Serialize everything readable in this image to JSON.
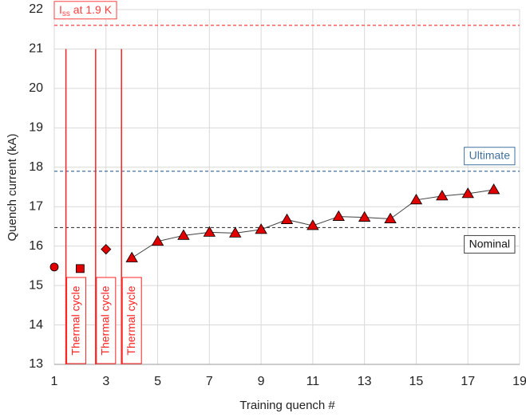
{
  "chart_data": {
    "type": "line",
    "xlabel": "Training quench #",
    "ylabel": "Quench current (kA)",
    "xlim": [
      1,
      19
    ],
    "xticks": [
      1,
      3,
      5,
      7,
      9,
      11,
      13,
      15,
      17,
      19
    ],
    "ylim": [
      13,
      22
    ],
    "yticks": [
      13,
      14,
      15,
      16,
      17,
      18,
      19,
      20,
      21,
      22
    ],
    "grid": true,
    "series": [
      {
        "marker": "circle",
        "color": "#e00000",
        "x": [
          1
        ],
        "values": [
          15.47
        ]
      },
      {
        "marker": "square",
        "color": "#e00000",
        "x": [
          2
        ],
        "values": [
          15.43
        ]
      },
      {
        "marker": "diamond",
        "color": "#e00000",
        "x": [
          3
        ],
        "values": [
          15.92
        ]
      },
      {
        "marker": "triangle",
        "color": "#e00000",
        "line_color": "#404040",
        "x": [
          4,
          5,
          6,
          7,
          8,
          9,
          10,
          11,
          12,
          13,
          14,
          15,
          16,
          17,
          18
        ],
        "values": [
          15.7,
          16.12,
          16.27,
          16.35,
          16.33,
          16.42,
          16.67,
          16.52,
          16.75,
          16.73,
          16.69,
          17.17,
          17.27,
          17.33,
          17.43
        ]
      }
    ],
    "reference_lines": [
      {
        "value": 21.6,
        "color": "#ff4040",
        "label": [
          "I",
          "ss",
          " at 1.9 K"
        ],
        "label_position": "above-left"
      },
      {
        "value": 17.9,
        "color": "#41719c",
        "label": [
          "Ultimate"
        ],
        "label_position": "above-right"
      },
      {
        "value": 16.47,
        "color": "#404040",
        "label": [
          "Nominal"
        ],
        "label_position": "below-right"
      }
    ],
    "thermal_cycles": {
      "color": "#ff2020",
      "top": 21,
      "x": [
        1.45,
        2.6,
        3.6
      ],
      "labels": [
        "Thermal cycle",
        "Thermal cycle",
        "Thermal cycle"
      ]
    }
  }
}
